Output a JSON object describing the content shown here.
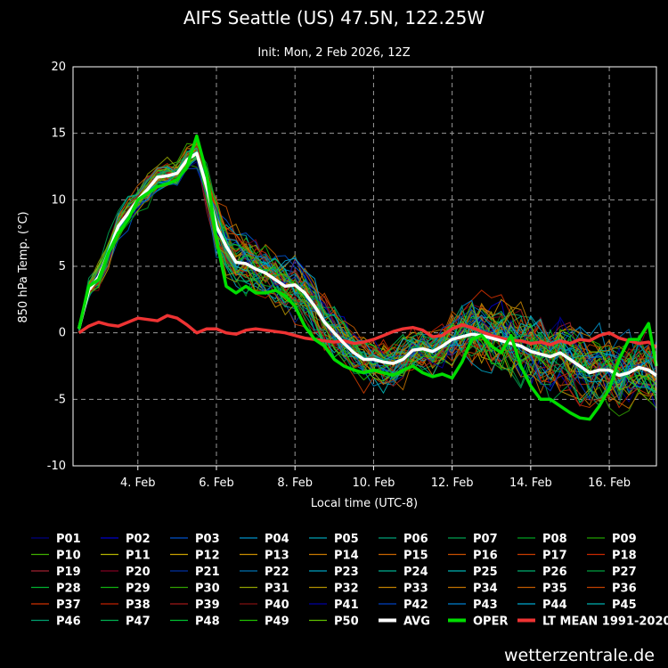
{
  "title": "AIFS Seattle (US) 47.5N, 122.25W",
  "subtitle": "Init: Mon, 2 Feb 2026, 12Z",
  "credit": "wetterzentrale.de",
  "chart_data": {
    "type": "line",
    "xlabel": "Local time (UTC-8)",
    "ylabel": "850 hPa Temp. (°C)",
    "xlim": [
      2.35,
      17.2
    ],
    "ylim": [
      -10,
      20
    ],
    "xticks": [
      {
        "x": 4,
        "label": "4. Feb"
      },
      {
        "x": 6,
        "label": "6. Feb"
      },
      {
        "x": 8,
        "label": "8. Feb"
      },
      {
        "x": 10,
        "label": "10. Feb"
      },
      {
        "x": 12,
        "label": "12. Feb"
      },
      {
        "x": 14,
        "label": "14. Feb"
      },
      {
        "x": 16,
        "label": "16. Feb"
      }
    ],
    "yticks": [
      -10,
      -5,
      0,
      5,
      10,
      15,
      20
    ],
    "grid": true,
    "legend_position": "bottom",
    "x": [
      2.5,
      2.75,
      3.0,
      3.25,
      3.5,
      3.75,
      4.0,
      4.25,
      4.5,
      4.75,
      5.0,
      5.25,
      5.5,
      5.75,
      6.0,
      6.25,
      6.5,
      6.75,
      7.0,
      7.25,
      7.5,
      7.75,
      8.0,
      8.25,
      8.5,
      8.75,
      9.0,
      9.25,
      9.5,
      9.75,
      10.0,
      10.25,
      10.5,
      10.75,
      11.0,
      11.25,
      11.5,
      11.75,
      12.0,
      12.25,
      12.5,
      12.75,
      13.0,
      13.25,
      13.5,
      13.75,
      14.0,
      14.25,
      14.5,
      14.75,
      15.0,
      15.25,
      15.5,
      15.75,
      16.0,
      16.25,
      16.5,
      16.75,
      17.0,
      17.2
    ],
    "series": [
      {
        "name": "AVG",
        "color": "#ffffff",
        "width": 3.5,
        "values": [
          0.3,
          3.2,
          4.2,
          6.0,
          8.0,
          9.0,
          10.0,
          10.8,
          11.7,
          11.8,
          12.0,
          13.0,
          13.5,
          11.0,
          8.0,
          6.5,
          5.3,
          5.2,
          4.8,
          4.5,
          4.0,
          3.5,
          3.6,
          3.0,
          2.0,
          0.8,
          0.0,
          -0.8,
          -1.5,
          -2.0,
          -2.0,
          -2.2,
          -2.3,
          -2.0,
          -1.3,
          -1.2,
          -1.4,
          -1.0,
          -0.5,
          -0.3,
          -0.1,
          -0.2,
          -0.4,
          -0.6,
          -0.8,
          -1.0,
          -1.4,
          -1.6,
          -1.8,
          -1.5,
          -2.0,
          -2.5,
          -3.0,
          -2.8,
          -2.8,
          -3.2,
          -3.0,
          -2.6,
          -2.8,
          -3.2
        ]
      },
      {
        "name": "OPER",
        "color": "#00dd00",
        "width": 3.5,
        "values": [
          0.3,
          3.5,
          4.0,
          6.0,
          7.5,
          8.5,
          10.0,
          10.5,
          11.0,
          11.2,
          11.5,
          12.5,
          14.8,
          12.0,
          7.0,
          3.5,
          3.0,
          3.5,
          3.0,
          3.0,
          3.2,
          2.8,
          2.0,
          0.5,
          -0.5,
          -1.0,
          -2.0,
          -2.5,
          -2.8,
          -3.0,
          -2.8,
          -3.0,
          -3.2,
          -2.8,
          -2.5,
          -3.0,
          -3.3,
          -3.1,
          -3.4,
          -2.2,
          -0.5,
          -0.2,
          -1.0,
          -1.5,
          -0.2,
          -2.5,
          -4.0,
          -5.0,
          -5.0,
          -5.5,
          -6.0,
          -6.4,
          -6.5,
          -5.5,
          -4.2,
          -2.0,
          -0.5,
          -0.5,
          0.7,
          -2.5
        ]
      },
      {
        "name": "LT MEAN 1991-2020",
        "color": "#ee3333",
        "width": 3.5,
        "values": [
          0.0,
          0.5,
          0.8,
          0.6,
          0.5,
          0.8,
          1.1,
          1.0,
          0.9,
          1.3,
          1.1,
          0.6,
          0.0,
          0.3,
          0.3,
          0.0,
          -0.1,
          0.2,
          0.3,
          0.2,
          0.1,
          0.0,
          -0.2,
          -0.4,
          -0.5,
          -0.6,
          -0.7,
          -0.6,
          -0.8,
          -0.7,
          -0.5,
          -0.2,
          0.1,
          0.3,
          0.4,
          0.2,
          -0.3,
          -0.2,
          0.3,
          0.6,
          0.4,
          0.1,
          -0.2,
          -0.4,
          -0.6,
          -0.6,
          -0.8,
          -0.7,
          -0.9,
          -0.6,
          -0.8,
          -0.5,
          -0.6,
          -0.2,
          0.0,
          -0.4,
          -0.6,
          -0.8,
          -0.7,
          -1.1
        ]
      }
    ],
    "legend": [
      {
        "label": "P01",
        "color": "#000080"
      },
      {
        "label": "P02",
        "color": "#0000c8"
      },
      {
        "label": "P03",
        "color": "#0050c8"
      },
      {
        "label": "P04",
        "color": "#0090c8"
      },
      {
        "label": "P05",
        "color": "#00a0b4"
      },
      {
        "label": "P06",
        "color": "#00a078"
      },
      {
        "label": "P07",
        "color": "#00a050"
      },
      {
        "label": "P08",
        "color": "#00a020"
      },
      {
        "label": "P09",
        "color": "#20a000"
      },
      {
        "label": "P10",
        "color": "#40b000"
      },
      {
        "label": "P11",
        "color": "#b4b400"
      },
      {
        "label": "P12",
        "color": "#c8a000"
      },
      {
        "label": "P13",
        "color": "#c88c00"
      },
      {
        "label": "P14",
        "color": "#c87800"
      },
      {
        "label": "P15",
        "color": "#c86400"
      },
      {
        "label": "P16",
        "color": "#c85000"
      },
      {
        "label": "P17",
        "color": "#c83c00"
      },
      {
        "label": "P18",
        "color": "#c82800"
      },
      {
        "label": "P19",
        "color": "#a02030"
      },
      {
        "label": "P20",
        "color": "#800020"
      },
      {
        "label": "P21",
        "color": "#0030a0"
      },
      {
        "label": "P22",
        "color": "#0070b0"
      },
      {
        "label": "P23",
        "color": "#00a0c0"
      },
      {
        "label": "P24",
        "color": "#00b090"
      },
      {
        "label": "P25",
        "color": "#00b4b4"
      },
      {
        "label": "P26",
        "color": "#00b070"
      },
      {
        "label": "P27",
        "color": "#00a040"
      },
      {
        "label": "P28",
        "color": "#00b030"
      },
      {
        "label": "P29",
        "color": "#10b010"
      },
      {
        "label": "P30",
        "color": "#30a000"
      },
      {
        "label": "P31",
        "color": "#90a000"
      },
      {
        "label": "P32",
        "color": "#b09000"
      },
      {
        "label": "P33",
        "color": "#c08000"
      },
      {
        "label": "P34",
        "color": "#c07000"
      },
      {
        "label": "P35",
        "color": "#c05a00"
      },
      {
        "label": "P36",
        "color": "#c04000"
      },
      {
        "label": "P37",
        "color": "#d03000"
      },
      {
        "label": "P38",
        "color": "#c02000"
      },
      {
        "label": "P39",
        "color": "#a01818"
      },
      {
        "label": "P40",
        "color": "#801010"
      },
      {
        "label": "P41",
        "color": "#0000a0"
      },
      {
        "label": "P42",
        "color": "#0040c0"
      },
      {
        "label": "P43",
        "color": "#0080d0"
      },
      {
        "label": "P44",
        "color": "#00a8d0"
      },
      {
        "label": "P45",
        "color": "#00b0b0"
      },
      {
        "label": "P46",
        "color": "#00a070"
      },
      {
        "label": "P47",
        "color": "#00b050"
      },
      {
        "label": "P48",
        "color": "#00c030"
      },
      {
        "label": "P49",
        "color": "#20c000"
      },
      {
        "label": "P50",
        "color": "#60c000"
      },
      {
        "label": "AVG",
        "color": "#ffffff",
        "thick": true
      },
      {
        "label": "OPER",
        "color": "#00dd00",
        "thick": true
      },
      {
        "label": "LT MEAN 1991-2020",
        "color": "#ee3333",
        "thick": true
      }
    ]
  }
}
